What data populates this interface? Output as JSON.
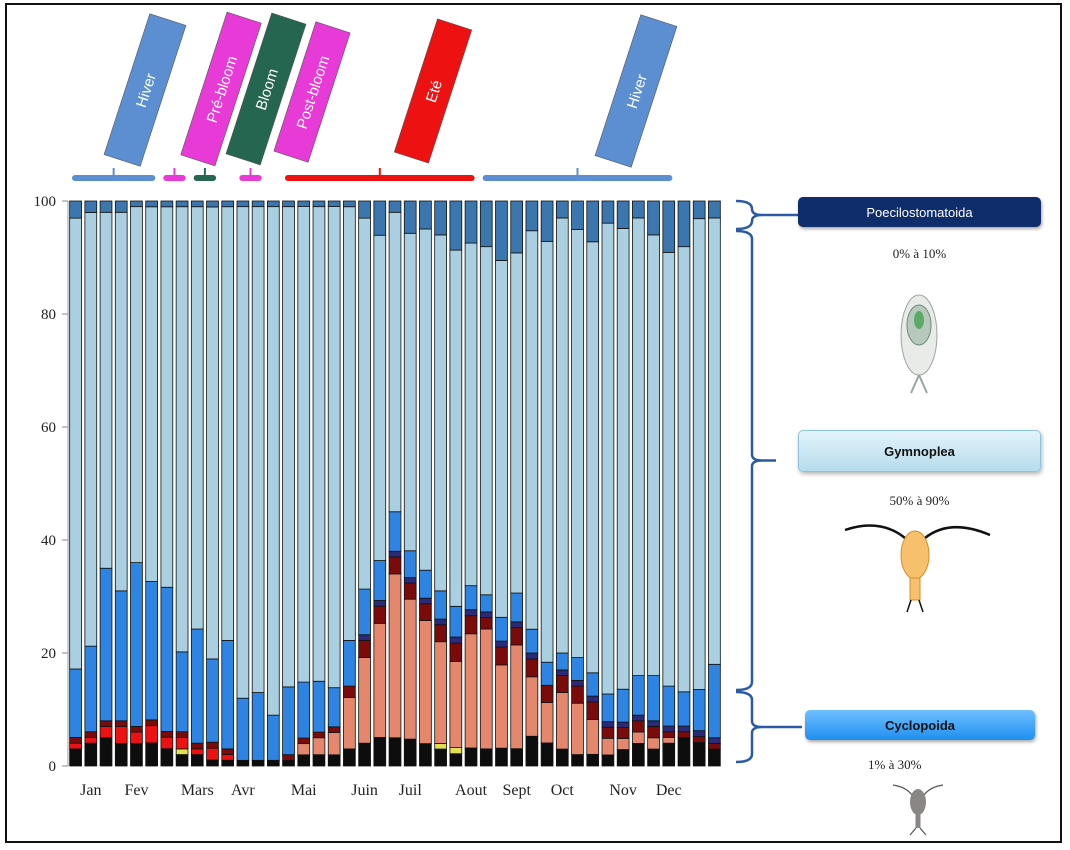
{
  "chart_data": {
    "type": "bar",
    "stacked": true,
    "ylim": [
      0,
      100
    ],
    "yticks": [
      0,
      20,
      40,
      60,
      80,
      100
    ],
    "month_labels": [
      "Jan",
      "Fev",
      "Mars",
      "Avr",
      "Mai",
      "Juin",
      "Juil",
      "Aout",
      "Sept",
      "Oct",
      "Nov",
      "Dec"
    ],
    "month_label_bar_index": [
      1,
      4,
      8,
      11,
      15,
      19,
      22,
      26,
      29,
      32,
      36,
      39
    ],
    "seasons": [
      {
        "label": "Hiver",
        "color": "#5b8fd1",
        "bar_start": 0,
        "bar_end": 5
      },
      {
        "label": "Pré-bloom",
        "color": "#e83ad6",
        "bar_start": 6,
        "bar_end": 7
      },
      {
        "label": "Bloom",
        "color": "#256651",
        "bar_start": 8,
        "bar_end": 9
      },
      {
        "label": "Post-bloom",
        "color": "#e83ad6",
        "bar_start": 11,
        "bar_end": 12
      },
      {
        "label": "Eté",
        "color": "#ee1111",
        "bar_start": 14,
        "bar_end": 26
      },
      {
        "label": "Hiver",
        "color": "#5b8fd1",
        "bar_start": 27,
        "bar_end": 39
      }
    ],
    "series": [
      {
        "color": "#0d0d0d",
        "values": [
          3,
          4,
          5,
          4,
          4,
          4,
          3,
          2,
          2,
          1,
          1,
          1,
          1,
          1,
          1,
          2,
          2,
          2,
          3,
          4,
          5,
          5,
          5,
          4,
          3,
          2,
          3,
          3,
          3,
          3,
          5,
          4,
          3,
          2,
          2,
          2,
          3,
          4,
          3,
          4,
          5,
          4,
          3
        ]
      },
      {
        "color": "#e0e050",
        "values": [
          0,
          0,
          0,
          0,
          0,
          0,
          0,
          1,
          0,
          0,
          0,
          0,
          0,
          0,
          0,
          0,
          0,
          0,
          0,
          0,
          0,
          0,
          0,
          0,
          1,
          1,
          0,
          0,
          0,
          0,
          0,
          0,
          0,
          0,
          0,
          0,
          0,
          0,
          0,
          0,
          0,
          0,
          0
        ]
      },
      {
        "color": "#ee1111",
        "values": [
          1,
          1,
          2,
          3,
          2,
          3,
          2,
          2,
          1,
          2,
          1,
          0,
          0,
          0,
          0,
          0,
          0,
          0,
          0,
          0,
          0,
          0,
          0,
          0,
          0,
          0,
          0,
          0,
          0,
          0,
          0,
          0,
          0,
          0,
          0,
          0,
          0,
          0,
          0,
          0,
          0,
          0,
          0
        ]
      },
      {
        "color": "#e5876c",
        "values": [
          0,
          0,
          0,
          0,
          0,
          0,
          0,
          0,
          0,
          0,
          0,
          0,
          0,
          0,
          0,
          2,
          3,
          4,
          9,
          15,
          20,
          29,
          26,
          22,
          18,
          14,
          19,
          21,
          14,
          18,
          10,
          7,
          10,
          9,
          6,
          3,
          2,
          2,
          2,
          1,
          0,
          0,
          0
        ]
      },
      {
        "color": "#7b0b0b",
        "values": [
          1,
          1,
          1,
          1,
          1,
          1,
          1,
          1,
          1,
          1,
          1,
          0,
          0,
          0,
          1,
          1,
          1,
          1,
          2,
          3,
          3,
          3,
          3,
          3,
          3,
          3,
          3,
          2,
          3,
          3,
          3,
          3,
          3,
          3,
          3,
          2,
          2,
          2,
          2,
          1,
          1,
          1,
          1
        ]
      },
      {
        "color": "#2a2a7a",
        "values": [
          0,
          0,
          0,
          0,
          0,
          0,
          0,
          0,
          0,
          0,
          0,
          0,
          0,
          0,
          0,
          0,
          0,
          0,
          0,
          1,
          1,
          1,
          1,
          1,
          1,
          1,
          1,
          1,
          1,
          1,
          1,
          0,
          1,
          1,
          1,
          1,
          1,
          1,
          1,
          1,
          1,
          1,
          1
        ]
      },
      {
        "color": "#2d84e2",
        "values": [
          12,
          15,
          27,
          23,
          29,
          24,
          25,
          14,
          20,
          14,
          19,
          11,
          12,
          8,
          12,
          10,
          9,
          7,
          8,
          8,
          7,
          7,
          5,
          5,
          5,
          5,
          4,
          3,
          4,
          5,
          4,
          4,
          3,
          4,
          4,
          5,
          6,
          7,
          8,
          7,
          6,
          7,
          13
        ]
      },
      {
        "color": "#a9cfe0",
        "values": [
          79,
          76,
          63,
          67,
          63,
          65,
          66,
          78,
          74,
          76,
          76,
          87,
          86,
          90,
          85,
          85,
          84,
          86,
          76,
          65,
          57,
          53,
          59,
          61,
          63,
          58,
          57,
          61,
          60,
          59,
          67,
          73,
          77,
          75,
          74,
          85,
          84,
          81,
          78,
          76,
          78,
          80,
          79
        ]
      },
      {
        "color": "#3b76ae",
        "values": [
          3,
          2,
          2,
          2,
          1,
          1,
          1,
          1,
          1,
          1,
          1,
          1,
          1,
          1,
          1,
          1,
          1,
          1,
          1,
          3,
          6,
          2,
          6,
          5,
          6,
          8,
          7,
          8,
          10,
          9,
          5,
          7,
          3,
          5,
          7,
          4,
          5,
          3,
          6,
          9,
          8,
          3,
          3
        ]
      }
    ]
  },
  "seasons_ui": {
    "labels": [
      "Hiver",
      "Pré-bloom",
      "Bloom",
      "Post-bloom",
      "Eté",
      "Hiver"
    ]
  },
  "groups": [
    {
      "name": "Poecilostomatoida",
      "range": "0% à 10%",
      "fill": "#0f2d6b",
      "text_color": "#ffffff"
    },
    {
      "name": "Gymnoplea",
      "range": "50% à 90%",
      "fill": "#c6e7f3",
      "text_color": "#111111"
    },
    {
      "name": "Cyclopoida",
      "range": "1% à 30%",
      "fill": "#1f8ff0",
      "text_color": "#111111"
    }
  ],
  "colors": {
    "bracket": "#2a5aa8",
    "grid_frame": "#111111"
  }
}
